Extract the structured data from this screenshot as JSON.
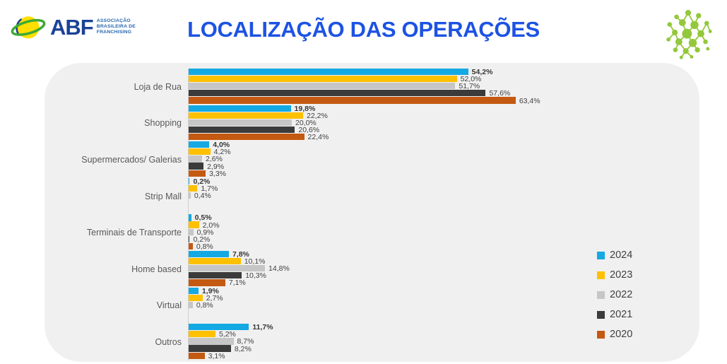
{
  "header": {
    "logo": {
      "abbr": "ABF",
      "subtitle1": "ASSOCIAÇÃO",
      "subtitle2": "BRASILEIRA DE",
      "subtitle3": "FRANCHISING"
    },
    "title": "LOCALIZAÇÃO DAS OPERAÇÕES",
    "title_color": "#1D53E3"
  },
  "chart_data": {
    "type": "bar",
    "orientation": "horizontal",
    "title": "LOCALIZAÇÃO DAS OPERAÇÕES",
    "value_suffix": "%",
    "decimal_separator": ",",
    "xlim": [
      0,
      70
    ],
    "gridlines": false,
    "legend_position": "right",
    "categories": [
      "Loja de Rua",
      "Shopping",
      "Supermercados/ Galerias",
      "Strip Mall",
      "Terminais de Transporte",
      "Home based",
      "Virtual",
      "Outros"
    ],
    "series": [
      {
        "name": "2024",
        "color": "#14A9E3",
        "bold_labels": true,
        "values": [
          54.2,
          19.8,
          4.0,
          0.2,
          0.5,
          7.8,
          1.9,
          11.7
        ]
      },
      {
        "name": "2023",
        "color": "#FFC000",
        "bold_labels": false,
        "values": [
          52.0,
          22.2,
          4.2,
          1.7,
          2.0,
          10.1,
          2.7,
          5.2
        ]
      },
      {
        "name": "2022",
        "color": "#C6C6C6",
        "bold_labels": false,
        "values": [
          51.7,
          20.0,
          2.6,
          0.4,
          0.9,
          14.8,
          0.8,
          8.7
        ]
      },
      {
        "name": "2021",
        "color": "#3B3B3B",
        "bold_labels": false,
        "values": [
          57.6,
          20.6,
          2.9,
          null,
          0.2,
          10.3,
          null,
          8.2
        ]
      },
      {
        "name": "2020",
        "color": "#C45911",
        "bold_labels": false,
        "values": [
          63.4,
          22.4,
          3.3,
          null,
          0.8,
          7.1,
          null,
          3.1
        ]
      }
    ]
  }
}
